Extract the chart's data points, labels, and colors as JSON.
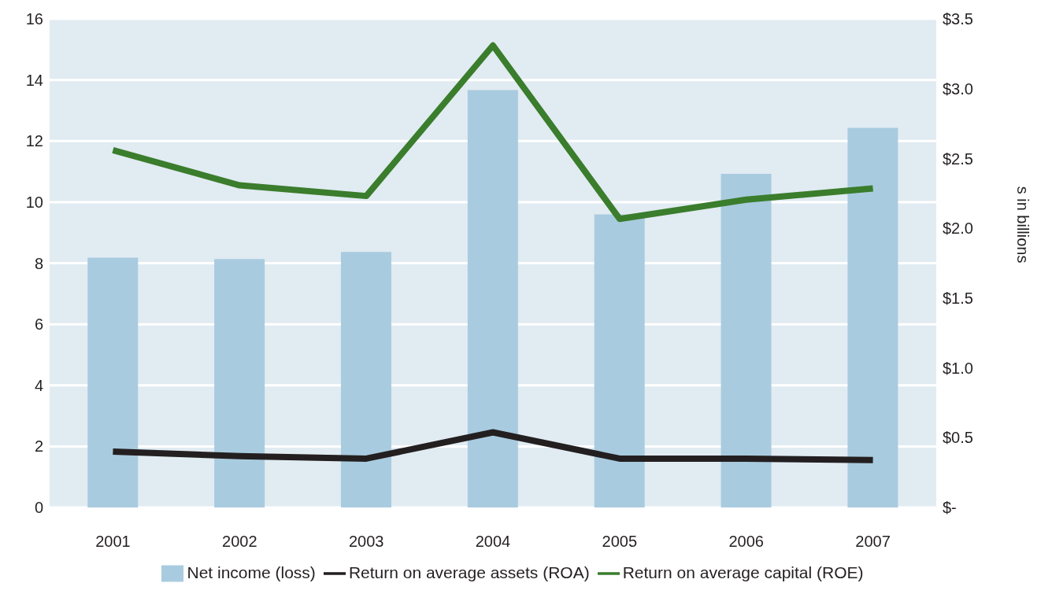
{
  "chart_data": {
    "type": "bar",
    "categories": [
      "2001",
      "2002",
      "2003",
      "2004",
      "2005",
      "2006",
      "2007"
    ],
    "series": [
      {
        "name": "Net income (loss)",
        "axis": "y2",
        "color": "#a9cbdf",
        "values": [
          1.79,
          1.78,
          1.83,
          2.99,
          2.1,
          2.39,
          2.72
        ]
      },
      {
        "name": "Return on average assets (ROA)",
        "type": "line",
        "color": "#231f20",
        "values": [
          1.83,
          1.68,
          1.6,
          2.46,
          1.6,
          1.6,
          1.55
        ]
      },
      {
        "name": "Return on average capital (ROE)",
        "type": "line",
        "color": "#3a7d2c",
        "values": [
          11.7,
          10.55,
          10.2,
          15.13,
          9.45,
          10.08,
          10.45
        ]
      }
    ],
    "ylim": [
      0,
      16
    ],
    "yticks": [
      0,
      2,
      4,
      6,
      8,
      10,
      12,
      14,
      16
    ],
    "y2lim": [
      0,
      3.5
    ],
    "y2ticks": [
      {
        "value": 0,
        "label": "$-"
      },
      {
        "value": 0.5,
        "label": "$0.5"
      },
      {
        "value": 1,
        "label": "$1.0"
      },
      {
        "value": 1.5,
        "label": "$1.5"
      },
      {
        "value": 2,
        "label": "$2.0"
      },
      {
        "value": 2.5,
        "label": "$2.5"
      },
      {
        "value": 3,
        "label": "$3.0"
      },
      {
        "value": 3.5,
        "label": "$3.5"
      }
    ],
    "y2label": "s in billions",
    "grid": "y",
    "legend": "bottom",
    "marker": "none",
    "line_style": "solid"
  }
}
